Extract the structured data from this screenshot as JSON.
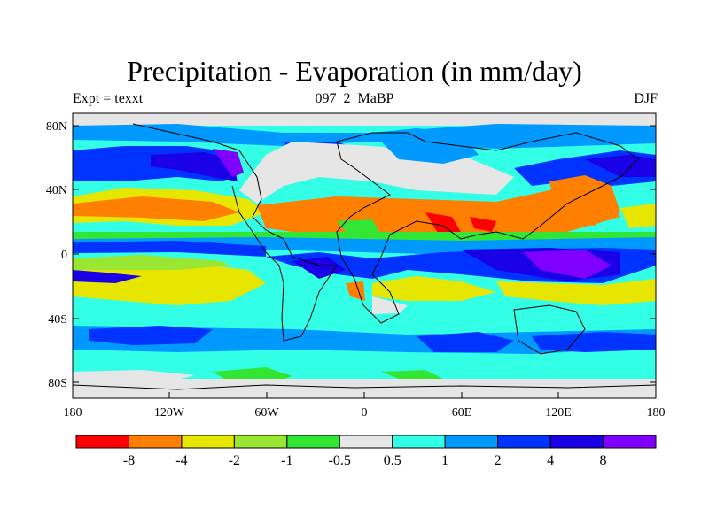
{
  "header": {
    "title": "Precipitation - Evaporation (in mm/day)",
    "subtitle": "097_2_MaBP",
    "left_label": "Expt = texxt",
    "right_label": "DJF"
  },
  "map": {
    "y_ticks": [
      "80N",
      "40N",
      "0",
      "40S",
      "80S"
    ],
    "x_ticks": [
      "180",
      "120W",
      "60W",
      "0",
      "60E",
      "120E",
      "180"
    ]
  },
  "colorbar": {
    "levels": [
      "-8",
      "-4",
      "-2",
      "-1",
      "-0.5",
      "0.5",
      "1",
      "2",
      "4",
      "8"
    ],
    "colors": [
      "#ff0000",
      "#ff7f00",
      "#e6e600",
      "#99e633",
      "#33e633",
      "#e6e6e6",
      "#33ffe6",
      "#0099ff",
      "#0033ff",
      "#1a00e6",
      "#8000ff"
    ]
  },
  "palette": {
    "red": "#ff0000",
    "orange": "#ff7f00",
    "yellow": "#e6e600",
    "lightgreen": "#99e633",
    "green": "#33e633",
    "grey": "#e6e6e6",
    "cyan": "#33ffe6",
    "lightblue": "#0099ff",
    "blue": "#0033ff",
    "darkblue": "#1a00e6",
    "purple": "#8000ff"
  }
}
